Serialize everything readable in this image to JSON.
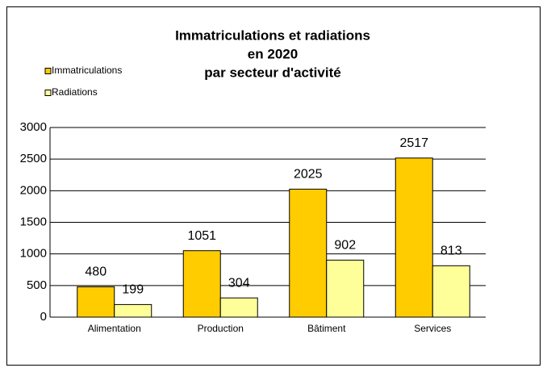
{
  "chart_data": {
    "type": "bar",
    "title": [
      "Immatriculations et radiations",
      "en 2020",
      "par secteur d'activité"
    ],
    "categories": [
      "Alimentation",
      "Production",
      "Bâtiment",
      "Services"
    ],
    "series": [
      {
        "name": "Immatriculations",
        "color": "#ffcc00",
        "values": [
          480,
          1051,
          2025,
          2517
        ]
      },
      {
        "name": "Radiations",
        "color": "#ffff99",
        "values": [
          199,
          304,
          902,
          813
        ]
      }
    ],
    "ylim": [
      0,
      3000
    ],
    "yticks": [
      0,
      500,
      1000,
      1500,
      2000,
      2500,
      3000
    ],
    "grid": true,
    "legend": "top-left"
  }
}
